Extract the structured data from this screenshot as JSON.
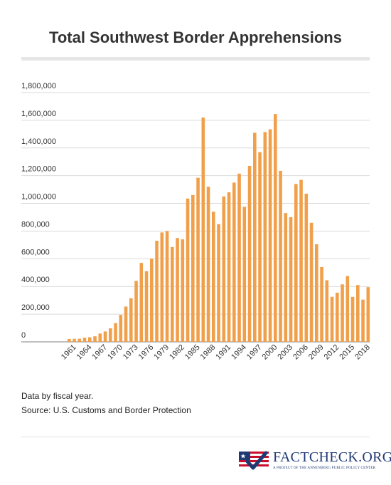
{
  "header": {
    "title": "Total Southwest Border Apprehensions"
  },
  "notes": {
    "line1": "Data by fiscal year.",
    "line2": "Source: U.S. Customs and Border Protection"
  },
  "logo": {
    "name": "FACTCHECK.ORG",
    "tagline": "A PROJECT OF THE ANNENBERG PUBLIC POLICY CENTER",
    "icon": "flag-check-icon"
  },
  "colors": {
    "bar": "#f0a04b",
    "grid": "#d9d9d9",
    "axis": "#999999",
    "text": "#333333",
    "logo_blue": "#1f3a73",
    "logo_red": "#c8102e"
  },
  "chart_data": {
    "type": "bar",
    "title": "Total Southwest Border Apprehensions",
    "xlabel": "",
    "ylabel": "",
    "ylim": [
      0,
      1800000
    ],
    "yticks": [
      0,
      200000,
      400000,
      600000,
      800000,
      1000000,
      1200000,
      1400000,
      1600000,
      1800000
    ],
    "ytick_labels": [
      "0",
      "200,000",
      "400,000",
      "600,000",
      "800,000",
      "1,000,000",
      "1,200,000",
      "1,400,000",
      "1,600,000",
      "1,800,000"
    ],
    "grid": true,
    "categories": [
      "1960",
      "1961",
      "1962",
      "1963",
      "1964",
      "1965",
      "1966",
      "1967",
      "1968",
      "1969",
      "1970",
      "1971",
      "1972",
      "1973",
      "1974",
      "1975",
      "1976",
      "1977",
      "1978",
      "1979",
      "1980",
      "1981",
      "1982",
      "1983",
      "1984",
      "1985",
      "1986",
      "1987",
      "1988",
      "1989",
      "1990",
      "1991",
      "1992",
      "1993",
      "1994",
      "1995",
      "1996",
      "1997",
      "1998",
      "1999",
      "2000",
      "2001",
      "2002",
      "2003",
      "2004",
      "2005",
      "2006",
      "2007",
      "2008",
      "2009",
      "2010",
      "2011",
      "2012",
      "2013",
      "2014",
      "2015",
      "2016",
      "2017",
      "2018"
    ],
    "x_tick_labels": [
      "1961",
      "1964",
      "1967",
      "1970",
      "1973",
      "1976",
      "1979",
      "1982",
      "1985",
      "1988",
      "1991",
      "1994",
      "1997",
      "2000",
      "2003",
      "2006",
      "2009",
      "2012",
      "2015",
      "2018"
    ],
    "values": [
      21000,
      22000,
      22500,
      30000,
      33000,
      40000,
      60000,
      75000,
      98000,
      135000,
      195000,
      255000,
      315000,
      440000,
      570000,
      510000,
      600000,
      730000,
      790000,
      800000,
      685000,
      750000,
      740000,
      1035000,
      1060000,
      1185000,
      1620000,
      1120000,
      940000,
      850000,
      1050000,
      1080000,
      1150000,
      1215000,
      975000,
      1270000,
      1510000,
      1370000,
      1515000,
      1535000,
      1645000,
      1235000,
      930000,
      900000,
      1140000,
      1170000,
      1070000,
      860000,
      705000,
      540000,
      445000,
      325000,
      355000,
      415000,
      475000,
      325000,
      410000,
      305000,
      395000
    ]
  }
}
